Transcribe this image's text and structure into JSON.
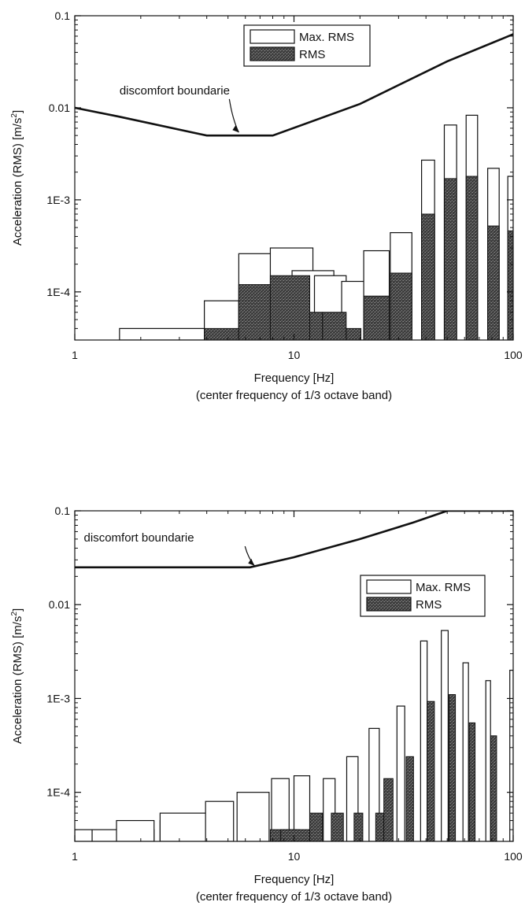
{
  "colors": {
    "line": "#111111",
    "rms_fill": "#4a4a4a",
    "max_fill": "#ffffff"
  },
  "chart_data": [
    {
      "type": "bar",
      "log_x": true,
      "log_y": true,
      "xlim": [
        1,
        100
      ],
      "ylim": [
        3e-05,
        0.1
      ],
      "xlabel": "Frequency [Hz]",
      "xlabel2": "(center frequency of 1/3 octave band)",
      "ylabel_main": "Acceleration (RMS) [m/s",
      "ylabel_sup": "2",
      "ylabel_tail": "]",
      "xticks": [
        {
          "v": 1,
          "label": "1"
        },
        {
          "v": 10,
          "label": "10"
        },
        {
          "v": 100,
          "label": "100"
        }
      ],
      "yticks": [
        {
          "v": 0.0001,
          "label": "1E-4"
        },
        {
          "v": 0.001,
          "label": "1E-3"
        },
        {
          "v": 0.01,
          "label": "0.01"
        },
        {
          "v": 0.1,
          "label": "0.1"
        }
      ],
      "legend": {
        "position": "top-right",
        "max_label": "Max. RMS",
        "rms_label": "RMS"
      },
      "annotation": {
        "text": "discomfort boundarie",
        "x": 1.6,
        "y": 0.014,
        "arrow_to": [
          5.6,
          0.0054
        ]
      },
      "boundary": [
        [
          1,
          0.01
        ],
        [
          1.6,
          0.008
        ],
        [
          4,
          0.005
        ],
        [
          8,
          0.005
        ],
        [
          20,
          0.011
        ],
        [
          50,
          0.032
        ],
        [
          100,
          0.063
        ]
      ],
      "series": [
        {
          "name": "Max. RMS",
          "bars": [
            {
              "x0": 1.6,
              "x1": 3.9,
              "value": 4e-05
            },
            {
              "x0": 3.9,
              "x1": 5.6,
              "value": 8e-05
            },
            {
              "x0": 5.6,
              "x1": 9.6,
              "value": 0.00026
            },
            {
              "x0": 7.8,
              "x1": 12.2,
              "value": 0.0003
            },
            {
              "x0": 9.8,
              "x1": 15.2,
              "value": 0.00017
            },
            {
              "x0": 12.4,
              "x1": 17.3,
              "value": 0.00015
            },
            {
              "x0": 16.5,
              "x1": 21.4,
              "value": 0.00013
            },
            {
              "x0": 20.8,
              "x1": 27.2,
              "value": 0.00028
            },
            {
              "x0": 27.5,
              "x1": 34.5,
              "value": 0.00044
            },
            {
              "x0": 38.2,
              "x1": 43.8,
              "value": 0.0027
            },
            {
              "x0": 48.5,
              "x1": 55.2,
              "value": 0.0065
            },
            {
              "x0": 61,
              "x1": 68.8,
              "value": 0.0083
            },
            {
              "x0": 76.5,
              "x1": 86.3,
              "value": 0.0022
            },
            {
              "x0": 94.5,
              "x1": 100,
              "value": 0.0018
            }
          ]
        },
        {
          "name": "RMS",
          "bars": [
            {
              "x0": 3.9,
              "x1": 5.6,
              "value": 4e-05
            },
            {
              "x0": 5.6,
              "x1": 7.8,
              "value": 0.00012
            },
            {
              "x0": 7.8,
              "x1": 11.8,
              "value": 0.00015
            },
            {
              "x0": 11.8,
              "x1": 13.5,
              "value": 6e-05
            },
            {
              "x0": 13.5,
              "x1": 17.3,
              "value": 6e-05
            },
            {
              "x0": 17.3,
              "x1": 20.2,
              "value": 4e-05
            },
            {
              "x0": 20.8,
              "x1": 27.2,
              "value": 9e-05
            },
            {
              "x0": 27.5,
              "x1": 34.5,
              "value": 0.00016
            },
            {
              "x0": 38.2,
              "x1": 43.8,
              "value": 0.0007
            },
            {
              "x0": 48.5,
              "x1": 55.2,
              "value": 0.0017
            },
            {
              "x0": 61,
              "x1": 68.8,
              "value": 0.0018
            },
            {
              "x0": 76.5,
              "x1": 86.3,
              "value": 0.00052
            },
            {
              "x0": 94.5,
              "x1": 100,
              "value": 0.00046
            }
          ]
        }
      ]
    },
    {
      "type": "bar",
      "log_x": true,
      "log_y": true,
      "xlim": [
        1,
        100
      ],
      "ylim": [
        3e-05,
        0.1
      ],
      "xlabel": "Frequency [Hz]",
      "xlabel2": "(center frequency of 1/3 octave band)",
      "ylabel_main": "Acceleration (RMS) [m/s",
      "ylabel_sup": "2",
      "ylabel_tail": "]",
      "xticks": [
        {
          "v": 1,
          "label": "1"
        },
        {
          "v": 10,
          "label": "10"
        },
        {
          "v": 100,
          "label": "100"
        }
      ],
      "yticks": [
        {
          "v": 0.0001,
          "label": "1E-4"
        },
        {
          "v": 0.001,
          "label": "1E-3"
        },
        {
          "v": 0.01,
          "label": "0.01"
        },
        {
          "v": 0.1,
          "label": "0.1"
        }
      ],
      "legend": {
        "position": "upper-right",
        "max_label": "Max. RMS",
        "rms_label": "RMS"
      },
      "annotation": {
        "text": "discomfort boundarie",
        "x": 1.1,
        "y": 0.047,
        "arrow_to": [
          6.6,
          0.026
        ]
      },
      "boundary": [
        [
          1,
          0.025
        ],
        [
          6.3,
          0.025
        ],
        [
          10,
          0.032
        ],
        [
          20,
          0.05
        ],
        [
          35,
          0.075
        ],
        [
          50,
          0.1
        ],
        [
          100,
          0.1
        ]
      ],
      "series": [
        {
          "name": "Max. RMS",
          "bars": [
            {
              "x0": 1.0,
              "x1": 1.2,
              "value": 4e-05
            },
            {
              "x0": 1.2,
              "x1": 2.3,
              "value": 4e-05
            },
            {
              "x0": 1.55,
              "x1": 2.3,
              "value": 5e-05
            },
            {
              "x0": 2.45,
              "x1": 3.2,
              "value": 5e-05
            },
            {
              "x0": 2.45,
              "x1": 4.2,
              "value": 6e-05
            },
            {
              "x0": 3.95,
              "x1": 5.3,
              "value": 8e-05
            },
            {
              "x0": 5.5,
              "x1": 7.7,
              "value": 0.0001
            },
            {
              "x0": 7.9,
              "x1": 9.5,
              "value": 0.00014
            },
            {
              "x0": 10.0,
              "x1": 11.8,
              "value": 0.00015
            },
            {
              "x0": 13.6,
              "x1": 15.4,
              "value": 0.00014
            },
            {
              "x0": 17.4,
              "x1": 19.6,
              "value": 0.00024
            },
            {
              "x0": 22.0,
              "x1": 24.5,
              "value": 0.00048
            },
            {
              "x0": 29.5,
              "x1": 32.0,
              "value": 0.00083
            },
            {
              "x0": 37.8,
              "x1": 40.5,
              "value": 0.0041
            },
            {
              "x0": 47.0,
              "x1": 50.5,
              "value": 0.0053
            },
            {
              "x0": 59.0,
              "x1": 62.5,
              "value": 0.0024
            },
            {
              "x0": 75.0,
              "x1": 78.8,
              "value": 0.00155
            },
            {
              "x0": 96.5,
              "x1": 100,
              "value": 0.002
            }
          ]
        },
        {
          "name": "RMS",
          "bars": [
            {
              "x0": 7.8,
              "x1": 10.6,
              "value": 4e-05
            },
            {
              "x0": 8.7,
              "x1": 11.8,
              "value": 4e-05
            },
            {
              "x0": 11.8,
              "x1": 13.5,
              "value": 6e-05
            },
            {
              "x0": 14.8,
              "x1": 16.8,
              "value": 6e-05
            },
            {
              "x0": 18.8,
              "x1": 20.6,
              "value": 6e-05
            },
            {
              "x0": 23.6,
              "x1": 25.7,
              "value": 6e-05
            },
            {
              "x0": 25.7,
              "x1": 28.3,
              "value": 0.00014
            },
            {
              "x0": 32.5,
              "x1": 35.1,
              "value": 0.00024
            },
            {
              "x0": 40.5,
              "x1": 43.7,
              "value": 0.00093
            },
            {
              "x0": 51.0,
              "x1": 54.5,
              "value": 0.0011
            },
            {
              "x0": 63.0,
              "x1": 67.0,
              "value": 0.00055
            },
            {
              "x0": 79.0,
              "x1": 84.0,
              "value": 0.0004
            },
            {
              "x0": 100,
              "x1": 103,
              "value": 0.00044
            }
          ]
        }
      ]
    }
  ]
}
